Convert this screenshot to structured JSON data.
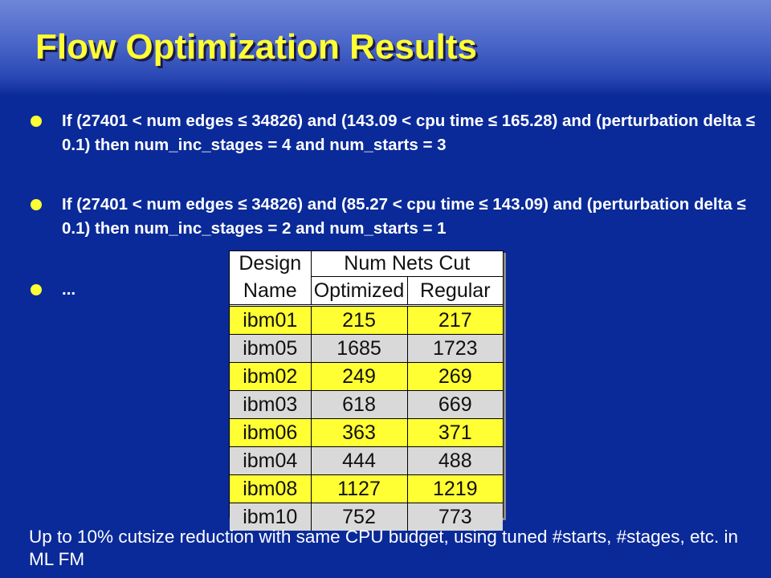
{
  "title": "Flow Optimization Results",
  "bullets": [
    "If (27401 < num edges ≤ 34826) and (143.09 < cpu time ≤ 165.28) and (perturbation delta ≤ 0.1) then num_inc_stages = 4 and num_starts = 3",
    "If (27401 < num edges ≤ 34826) and (85.27 < cpu time ≤ 143.09) and (perturbation delta ≤ 0.1) then num_inc_stages = 2 and num_starts = 1",
    "..."
  ],
  "table": {
    "header_design_1": "Design",
    "header_design_2": "Name",
    "header_group": "Num Nets Cut",
    "header_optimized": "Optimized",
    "header_regular": "Regular",
    "rows": [
      {
        "name": "ibm01",
        "optimized": "215",
        "regular": "217"
      },
      {
        "name": "ibm05",
        "optimized": "1685",
        "regular": "1723"
      },
      {
        "name": "ibm02",
        "optimized": "249",
        "regular": "269"
      },
      {
        "name": "ibm03",
        "optimized": "618",
        "regular": "669"
      },
      {
        "name": "ibm06",
        "optimized": "363",
        "regular": "371"
      },
      {
        "name": "ibm04",
        "optimized": "444",
        "regular": "488"
      },
      {
        "name": "ibm08",
        "optimized": "1127",
        "regular": "1219"
      },
      {
        "name": "ibm10",
        "optimized": "752",
        "regular": "773"
      }
    ],
    "highlight_color": "#ffff33",
    "alt_color": "#d9d9d9"
  },
  "footer": "Up to 10% cutsize reduction with same CPU budget, using tuned #starts, #stages, etc. in ML FM"
}
